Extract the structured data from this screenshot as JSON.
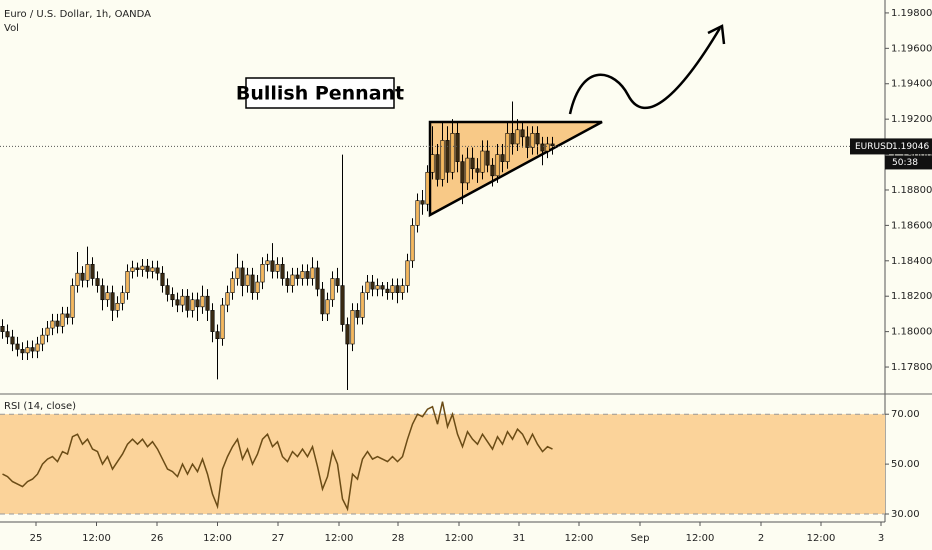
{
  "chart_data": {
    "type": "candlestick",
    "title": "Euro / U.S. Dollar, 1h, OANDA",
    "subtitle": "Vol",
    "annotation": "Bullish Pennant",
    "symbol": "EURUSD",
    "last_price": 1.19046,
    "countdown": "50:38",
    "up_color": "#f4b860",
    "down_color": "#3a2a12",
    "open": [
      1.1803,
      1.18,
      1.1797,
      1.1793,
      1.179,
      1.1788,
      1.1791,
      1.1789,
      1.1793,
      1.1798,
      1.1802,
      1.1806,
      1.1803,
      1.181,
      1.1808,
      1.1826,
      1.1833,
      1.1829,
      1.1838,
      1.183,
      1.1826,
      1.1818,
      1.1822,
      1.1812,
      1.1816,
      1.1822,
      1.1834,
      1.1836,
      1.1835,
      1.1837,
      1.1834,
      1.1836,
      1.1833,
      1.1826,
      1.1821,
      1.1818,
      1.1815,
      1.182,
      1.1812,
      1.1818,
      1.1814,
      1.182,
      1.1812,
      1.18,
      1.1796,
      1.1815,
      1.1822,
      1.183,
      1.1836,
      1.1826,
      1.1832,
      1.1822,
      1.1828,
      1.1838,
      1.184,
      1.1834,
      1.1838,
      1.183,
      1.1826,
      1.1832,
      1.183,
      1.1834,
      1.183,
      1.1836,
      1.1824,
      1.181,
      1.1818,
      1.183,
      1.1826,
      1.1804,
      1.1793,
      1.1812,
      1.1808,
      1.1822,
      1.1828,
      1.1824,
      1.1826,
      1.1824,
      1.1822,
      1.1826,
      1.1822,
      1.1826,
      1.184,
      1.186,
      1.1874,
      1.1872,
      1.189,
      1.19,
      1.1886,
      1.1908,
      1.189,
      1.1912,
      1.1896,
      1.1884,
      1.1898,
      1.1892,
      1.189,
      1.1902,
      1.1894,
      1.1888,
      1.19,
      1.1896,
      1.1912,
      1.1906,
      1.1914,
      1.191,
      1.1904,
      1.1912,
      1.1906,
      1.1902,
      1.1906
    ],
    "high": [
      1.1807,
      1.1804,
      1.1801,
      1.1797,
      1.1794,
      1.1795,
      1.1795,
      1.1797,
      1.1802,
      1.1806,
      1.181,
      1.181,
      1.1814,
      1.1814,
      1.183,
      1.1845,
      1.1837,
      1.1848,
      1.1842,
      1.1834,
      1.183,
      1.1826,
      1.1826,
      1.182,
      1.1826,
      1.1838,
      1.184,
      1.1839,
      1.1841,
      1.1841,
      1.184,
      1.184,
      1.1837,
      1.183,
      1.1825,
      1.1822,
      1.1824,
      1.1824,
      1.1822,
      1.1822,
      1.1826,
      1.1824,
      1.1816,
      1.1804,
      1.1819,
      1.1826,
      1.1834,
      1.1844,
      1.184,
      1.1836,
      1.1836,
      1.1832,
      1.1842,
      1.1844,
      1.185,
      1.1842,
      1.1842,
      1.1834,
      1.1836,
      1.1836,
      1.1838,
      1.1838,
      1.1842,
      1.184,
      1.1828,
      1.1822,
      1.1834,
      1.1836,
      1.19,
      1.1808,
      1.1816,
      1.1816,
      1.1826,
      1.1832,
      1.1832,
      1.183,
      1.1828,
      1.1828,
      1.183,
      1.183,
      1.183,
      1.1844,
      1.1864,
      1.1878,
      1.188,
      1.1894,
      1.1916,
      1.1906,
      1.1918,
      1.1916,
      1.192,
      1.1918,
      1.19,
      1.1904,
      1.1904,
      1.1898,
      1.1908,
      1.1908,
      1.1898,
      1.1906,
      1.1906,
      1.1918,
      1.193,
      1.192,
      1.1918,
      1.1916,
      1.1916,
      1.1916,
      1.191,
      1.191,
      1.191
    ],
    "low": [
      1.1796,
      1.1793,
      1.1789,
      1.1786,
      1.1784,
      1.1784,
      1.1785,
      1.1785,
      1.1789,
      1.1794,
      1.1798,
      1.1799,
      1.1799,
      1.1804,
      1.1804,
      1.1822,
      1.1825,
      1.1825,
      1.1826,
      1.1822,
      1.1812,
      1.1814,
      1.1806,
      1.1808,
      1.1812,
      1.1818,
      1.183,
      1.1831,
      1.1831,
      1.183,
      1.183,
      1.1829,
      1.1822,
      1.1817,
      1.1814,
      1.1811,
      1.1811,
      1.1808,
      1.1808,
      1.1806,
      1.181,
      1.1806,
      1.1794,
      1.1773,
      1.1792,
      1.1811,
      1.1818,
      1.1826,
      1.182,
      1.1822,
      1.1818,
      1.1818,
      1.1824,
      1.1834,
      1.183,
      1.183,
      1.1826,
      1.1822,
      1.1822,
      1.1826,
      1.1826,
      1.1826,
      1.1826,
      1.182,
      1.1806,
      1.1806,
      1.1814,
      1.1822,
      1.18,
      1.1767,
      1.1789,
      1.1804,
      1.1804,
      1.1818,
      1.182,
      1.182,
      1.182,
      1.1818,
      1.1818,
      1.1816,
      1.1818,
      1.1822,
      1.1836,
      1.1856,
      1.1866,
      1.1868,
      1.1886,
      1.1882,
      1.1882,
      1.1884,
      1.1886,
      1.189,
      1.1872,
      1.188,
      1.1886,
      1.1884,
      1.1886,
      1.189,
      1.1882,
      1.1884,
      1.189,
      1.1892,
      1.19,
      1.1902,
      1.1904,
      1.1898,
      1.19,
      1.19,
      1.1894,
      1.1898,
      1.19
    ],
    "close": [
      1.18,
      1.1797,
      1.1793,
      1.179,
      1.1788,
      1.1791,
      1.1789,
      1.1793,
      1.1798,
      1.1802,
      1.1806,
      1.1803,
      1.181,
      1.1808,
      1.1826,
      1.1833,
      1.1829,
      1.1838,
      1.183,
      1.1826,
      1.1818,
      1.1822,
      1.1812,
      1.1816,
      1.1822,
      1.1834,
      1.1836,
      1.1835,
      1.1837,
      1.1834,
      1.1836,
      1.1833,
      1.1826,
      1.1821,
      1.1818,
      1.1815,
      1.182,
      1.1812,
      1.1818,
      1.1814,
      1.182,
      1.1812,
      1.18,
      1.1796,
      1.1815,
      1.1822,
      1.183,
      1.1836,
      1.1826,
      1.1832,
      1.1822,
      1.1828,
      1.1838,
      1.184,
      1.1834,
      1.1838,
      1.183,
      1.1826,
      1.1832,
      1.183,
      1.1834,
      1.183,
      1.1836,
      1.1824,
      1.181,
      1.1818,
      1.183,
      1.1826,
      1.1804,
      1.1793,
      1.1812,
      1.1808,
      1.1822,
      1.1828,
      1.1824,
      1.1826,
      1.1824,
      1.1822,
      1.1826,
      1.1822,
      1.1826,
      1.184,
      1.186,
      1.1874,
      1.1872,
      1.189,
      1.19,
      1.1886,
      1.1908,
      1.189,
      1.1912,
      1.1896,
      1.1884,
      1.1898,
      1.1892,
      1.189,
      1.1902,
      1.1894,
      1.1888,
      1.19,
      1.1896,
      1.1912,
      1.1906,
      1.1914,
      1.191,
      1.1904,
      1.1912,
      1.1906,
      1.1902,
      1.1906,
      1.1905
    ],
    "ylim": [
      1.17659,
      1.19873
    ],
    "yticks": [
      {
        "value": 1.178,
        "label": "1.17800"
      },
      {
        "value": 1.18,
        "label": "1.18000"
      },
      {
        "value": 1.182,
        "label": "1.18200"
      },
      {
        "value": 1.184,
        "label": "1.18400"
      },
      {
        "value": 1.186,
        "label": "1.18600"
      },
      {
        "value": 1.188,
        "label": "1.18800"
      },
      {
        "value": 1.19,
        "label": "1.19000"
      },
      {
        "value": 1.192,
        "label": "1.19200"
      },
      {
        "value": 1.194,
        "label": "1.19400"
      },
      {
        "value": 1.196,
        "label": "1.19600"
      },
      {
        "value": 1.198,
        "label": "1.19800"
      }
    ],
    "xlim": [
      -0.5,
      176.5
    ],
    "xticks": [
      {
        "value": 6.7,
        "label": "25"
      },
      {
        "value": 18.8,
        "label": "12:00"
      },
      {
        "value": 30.9,
        "label": "26"
      },
      {
        "value": 43.0,
        "label": "12:00"
      },
      {
        "value": 55.1,
        "label": "27"
      },
      {
        "value": 67.3,
        "label": "12:00"
      },
      {
        "value": 79.1,
        "label": "28"
      },
      {
        "value": 91.3,
        "label": "12:00"
      },
      {
        "value": 103.3,
        "label": "31"
      },
      {
        "value": 115.3,
        "label": "12:00"
      },
      {
        "value": 127.5,
        "label": "Sep"
      },
      {
        "value": 139.5,
        "label": "12:00"
      },
      {
        "value": 151.7,
        "label": "2"
      },
      {
        "value": 163.7,
        "label": "12:00"
      },
      {
        "value": 175.7,
        "label": "3"
      }
    ],
    "rsi": {
      "title": "RSI (14, close)",
      "color": "#6b4c16",
      "band_color": "#fbd39a",
      "band": [
        30,
        70
      ],
      "ylim": [
        27.6,
        76.5
      ],
      "yticks": [
        {
          "value": 30,
          "label": "30.00"
        },
        {
          "value": 50,
          "label": "50.00"
        },
        {
          "value": 70,
          "label": "70.00"
        }
      ],
      "values": [
        46,
        45,
        43,
        42,
        41,
        43,
        44,
        46,
        50,
        52,
        53,
        51,
        55,
        54,
        61,
        62,
        58,
        60,
        56,
        55,
        50,
        53,
        48,
        51,
        54,
        58,
        60,
        58,
        60,
        57,
        59,
        56,
        52,
        48,
        47,
        45,
        50,
        46,
        50,
        47,
        52,
        46,
        38,
        33,
        48,
        53,
        57,
        60,
        52,
        56,
        50,
        54,
        60,
        62,
        57,
        59,
        53,
        51,
        55,
        53,
        56,
        53,
        57,
        49,
        40,
        45,
        55,
        50,
        36,
        32,
        46,
        44,
        52,
        55,
        52,
        53,
        52,
        51,
        53,
        51,
        53,
        60,
        66,
        70,
        69,
        72,
        73,
        66,
        75,
        65,
        70,
        62,
        57,
        63,
        60,
        58,
        62,
        59,
        56,
        61,
        58,
        63,
        60,
        64,
        62,
        58,
        62,
        58,
        55,
        57,
        56
      ]
    }
  }
}
